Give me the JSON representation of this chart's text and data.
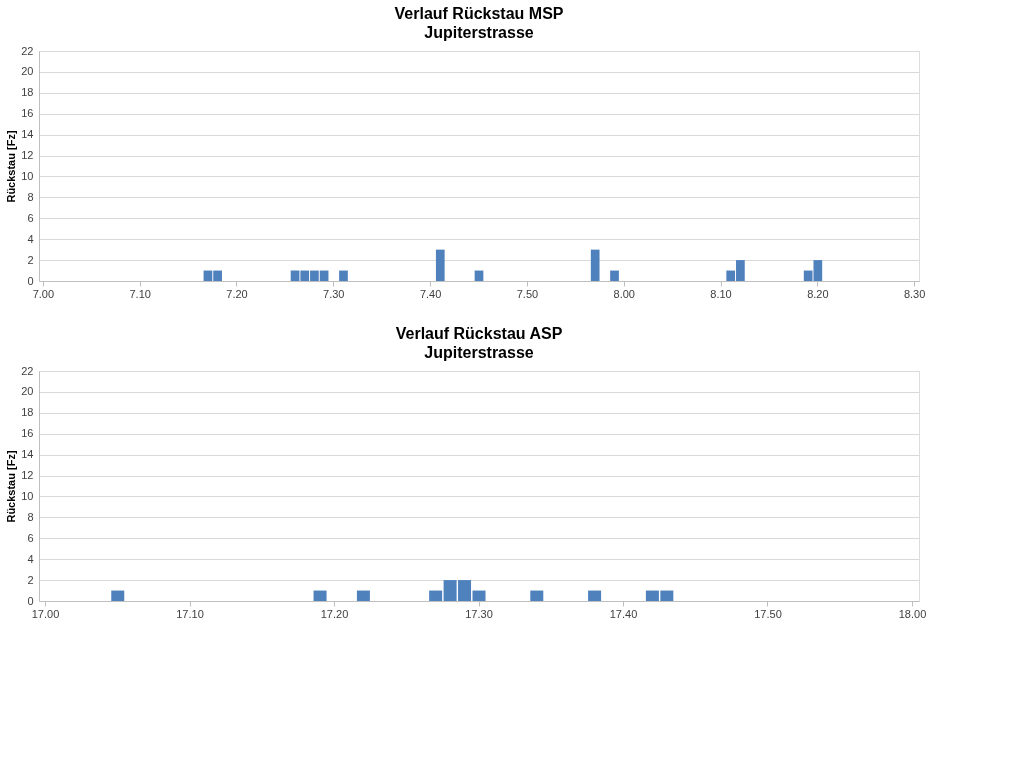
{
  "chart_data": [
    {
      "type": "bar",
      "title": "Verlauf Rückstau MSP",
      "subtitle": "Jupiterstrasse",
      "ylabel": "Rückstau [Fz]",
      "categories": [
        "7.00",
        null,
        null,
        null,
        null,
        null,
        null,
        null,
        null,
        null,
        "7.10",
        null,
        null,
        null,
        null,
        null,
        null,
        null,
        null,
        null,
        "7.20",
        null,
        null,
        null,
        null,
        null,
        null,
        null,
        null,
        null,
        "7.30",
        null,
        null,
        null,
        null,
        null,
        null,
        null,
        null,
        null,
        "7.40",
        null,
        null,
        null,
        null,
        null,
        null,
        null,
        null,
        null,
        "7.50",
        null,
        null,
        null,
        null,
        null,
        null,
        null,
        null,
        null,
        "8.00",
        null,
        null,
        null,
        null,
        null,
        null,
        null,
        null,
        null,
        "8.10",
        null,
        null,
        null,
        null,
        null,
        null,
        null,
        null,
        null,
        "8.20",
        null,
        null,
        null,
        null,
        null,
        null,
        null,
        null,
        null,
        "8.30"
      ],
      "series": [
        {
          "color": "#4f81bd",
          "values": [
            0,
            0,
            0,
            0,
            0,
            0,
            0,
            0,
            0,
            0,
            0,
            0,
            0,
            0,
            0,
            0,
            0,
            1,
            1,
            0,
            0,
            0,
            0,
            0,
            0,
            0,
            1,
            1,
            1,
            1,
            0,
            1,
            0,
            0,
            0,
            0,
            0,
            0,
            0,
            0,
            0,
            3,
            0,
            0,
            0,
            1,
            0,
            0,
            0,
            0,
            0,
            0,
            0,
            0,
            0,
            0,
            0,
            3,
            0,
            1,
            0,
            0,
            0,
            0,
            0,
            0,
            0,
            0,
            0,
            0,
            0,
            1,
            2,
            0,
            0,
            0,
            0,
            0,
            0,
            1,
            2,
            0,
            0,
            0,
            0,
            0,
            0,
            0,
            0,
            0,
            0
          ]
        }
      ],
      "ylim": [
        0,
        22
      ],
      "yticks": [
        0,
        2,
        4,
        6,
        8,
        10,
        12,
        14,
        16,
        18,
        20,
        22
      ],
      "grid": "y"
    },
    {
      "type": "bar",
      "title": "Verlauf Rückstau ASP",
      "subtitle": "Jupiterstrasse",
      "ylabel": "Rückstau [Fz]",
      "categories": [
        "17.00",
        null,
        null,
        null,
        null,
        null,
        null,
        null,
        null,
        null,
        "17.10",
        null,
        null,
        null,
        null,
        null,
        null,
        null,
        null,
        null,
        "17.20",
        null,
        null,
        null,
        null,
        null,
        null,
        null,
        null,
        null,
        "17.30",
        null,
        null,
        null,
        null,
        null,
        null,
        null,
        null,
        null,
        "17.40",
        null,
        null,
        null,
        null,
        null,
        null,
        null,
        null,
        null,
        "17.50",
        null,
        null,
        null,
        null,
        null,
        null,
        null,
        null,
        null,
        "18.00"
      ],
      "series": [
        {
          "color": "#4f81bd",
          "values": [
            0,
            0,
            0,
            0,
            0,
            1,
            0,
            0,
            0,
            0,
            0,
            0,
            0,
            0,
            0,
            0,
            0,
            0,
            0,
            1,
            0,
            0,
            1,
            0,
            0,
            0,
            0,
            1,
            2,
            2,
            1,
            0,
            0,
            0,
            1,
            0,
            0,
            0,
            1,
            0,
            0,
            0,
            1,
            1,
            0,
            0,
            0,
            0,
            0,
            0,
            0,
            0,
            0,
            0,
            0,
            0,
            0,
            0,
            0,
            0,
            0
          ]
        }
      ],
      "ylim": [
        0,
        22
      ],
      "yticks": [
        0,
        2,
        4,
        6,
        8,
        10,
        12,
        14,
        16,
        18,
        20,
        22
      ],
      "grid": "y"
    }
  ]
}
